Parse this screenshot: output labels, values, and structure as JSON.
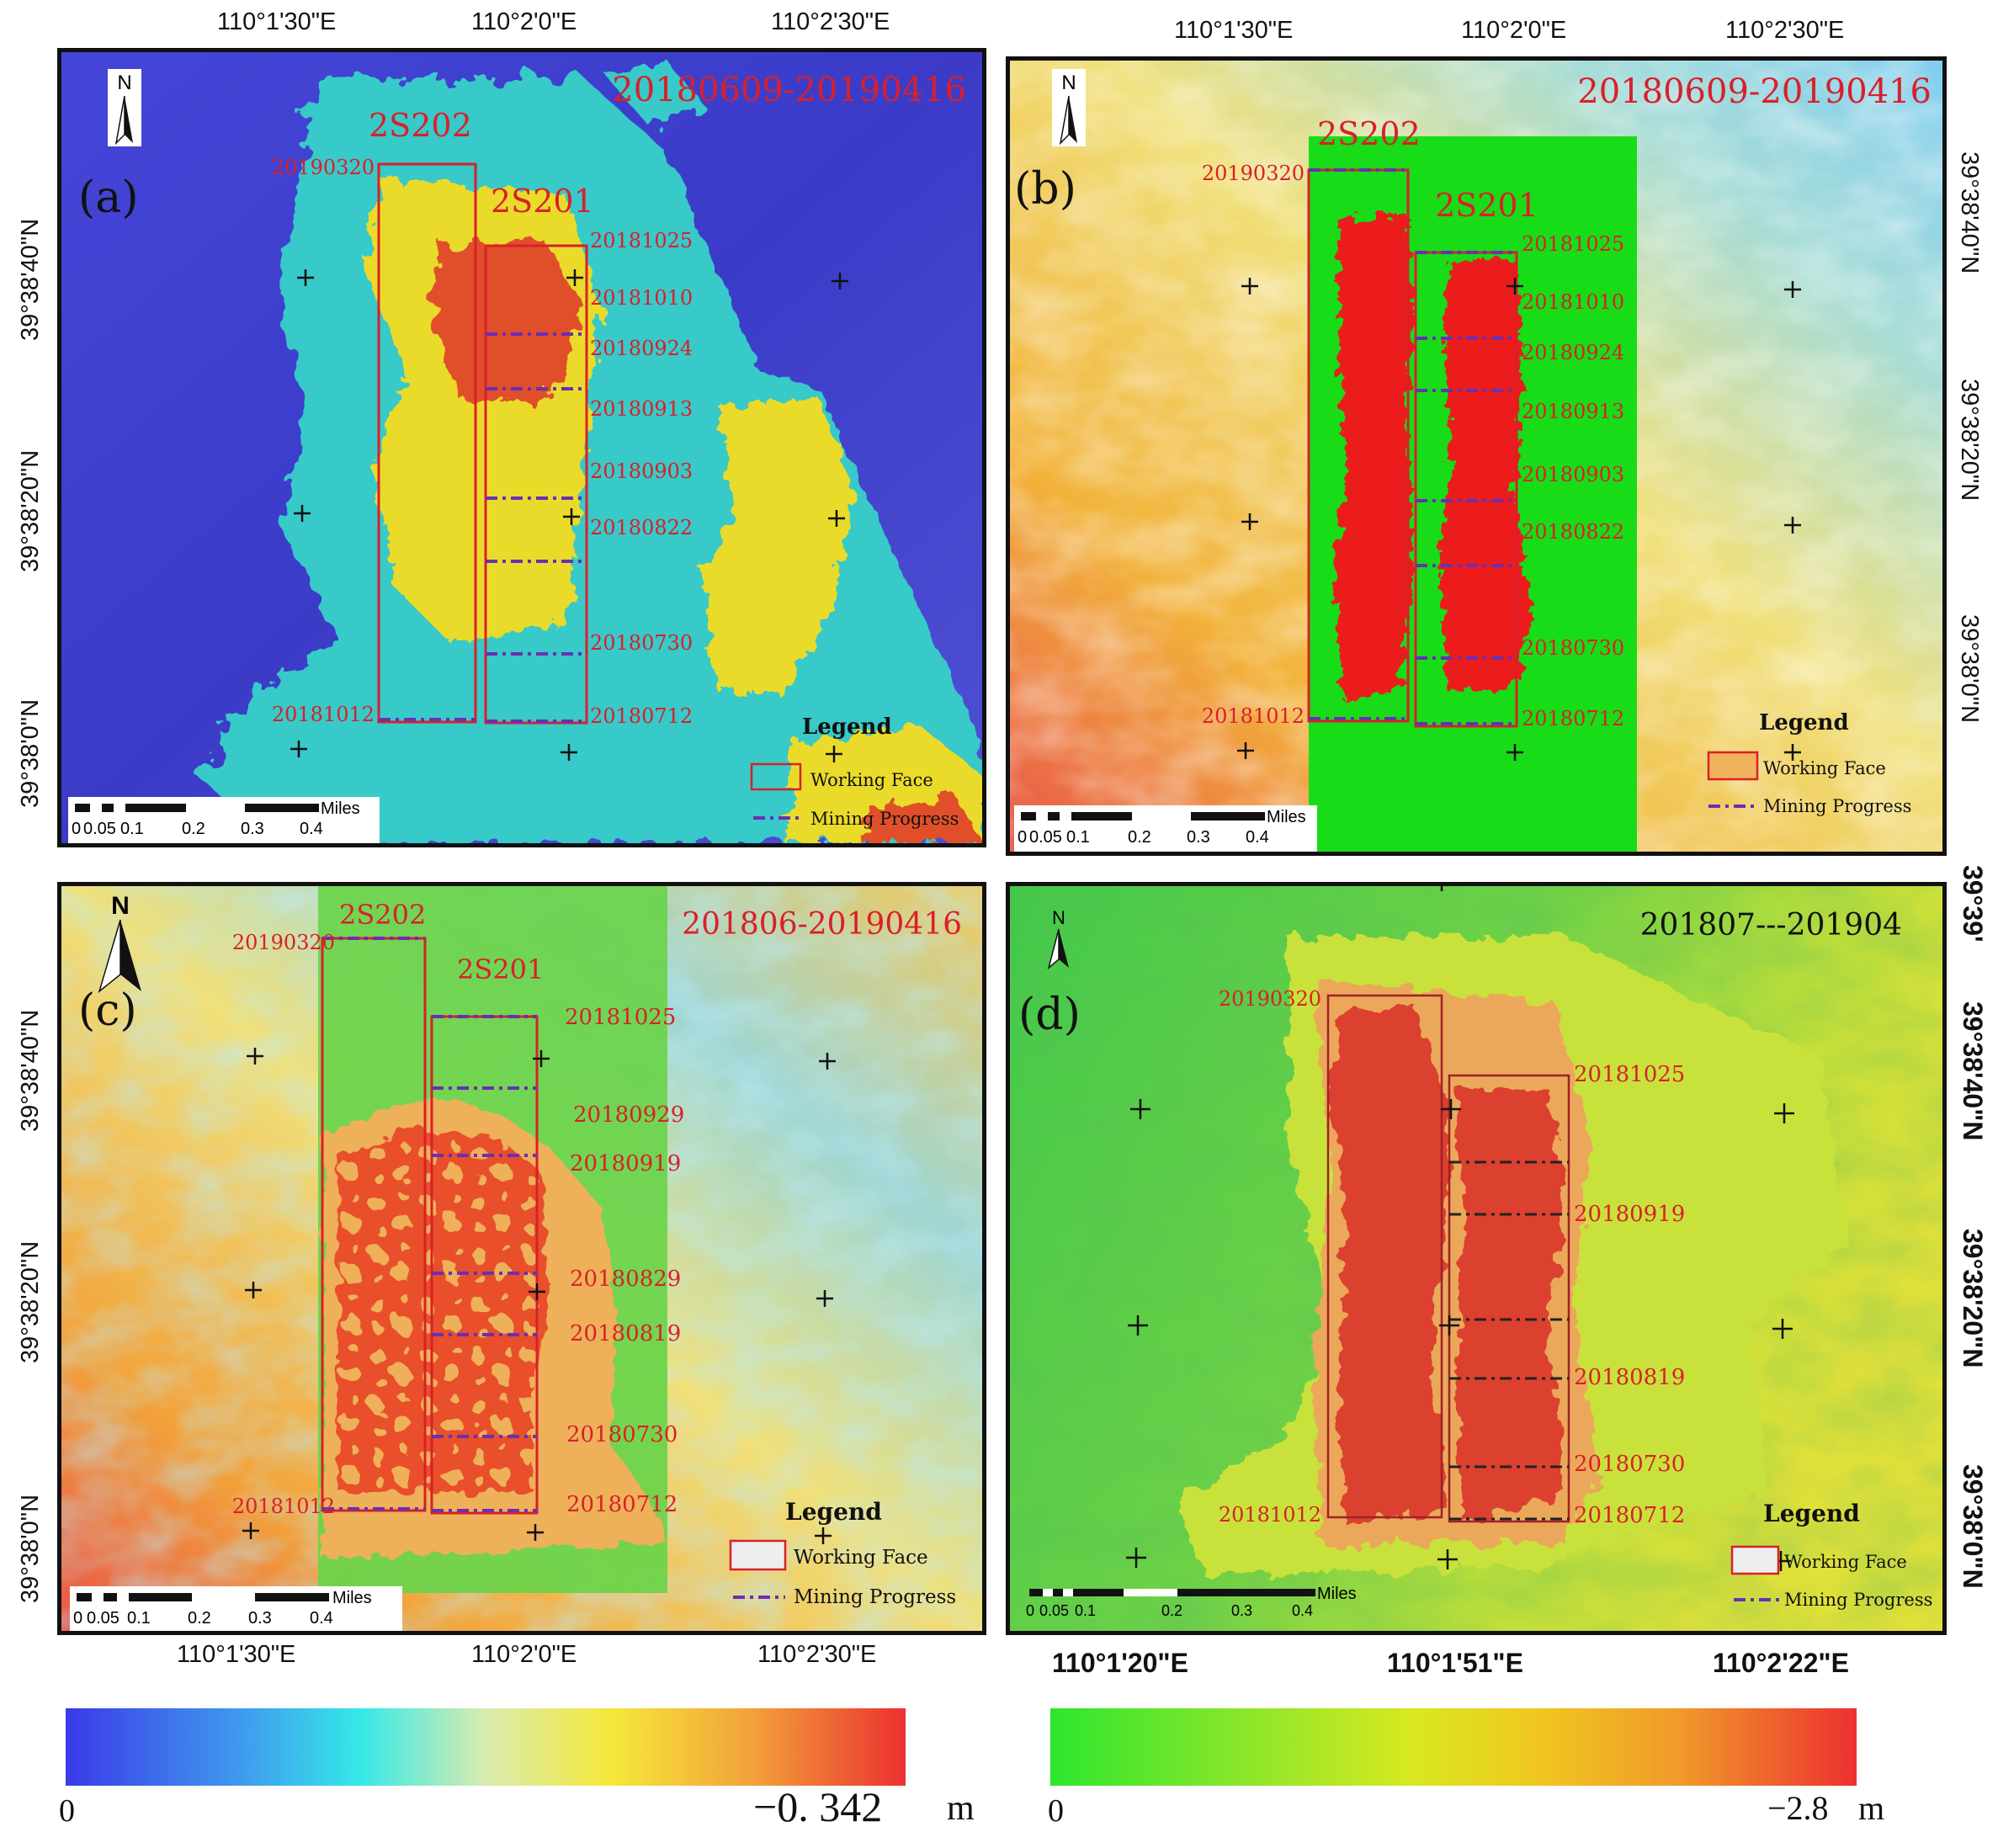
{
  "colors": {
    "red_text": "#d9202a",
    "purple_line": "#6a2fb4",
    "frame": "#111111"
  },
  "panels": [
    {
      "label": "(a)",
      "date_range": "20180609-20190416",
      "date_color": "#d9202a",
      "faces": {
        "left": "2S202",
        "right": "2S201"
      },
      "left_labels": {
        "top": "20190320",
        "bottom": "20181012"
      },
      "right_labels": [
        "20181025",
        "20181010",
        "20180924",
        "20180913",
        "20180903",
        "20180822",
        "20180730",
        "20180712"
      ],
      "legend": {
        "title": "Legend",
        "working_face": "Working Face",
        "mining_progress": "Mining Progress"
      },
      "scale": {
        "unit": "Miles",
        "ticks": [
          "0",
          "0.05",
          "0.1",
          "0.2",
          "0.3",
          "0.4"
        ]
      }
    },
    {
      "label": "(b)",
      "date_range": "20180609-20190416",
      "date_color": "#d9202a",
      "faces": {
        "left": "2S202",
        "right": "2S201"
      },
      "left_labels": {
        "top": "20190320",
        "bottom": "20181012"
      },
      "right_labels": [
        "20181025",
        "20181010",
        "20180924",
        "20180913",
        "20180903",
        "20180822",
        "20180730",
        "20180712"
      ],
      "legend": {
        "title": "Legend",
        "working_face": "Working Face",
        "mining_progress": "Mining Progress"
      },
      "scale": {
        "unit": "Miles",
        "ticks": [
          "0",
          "0.05",
          "0.1",
          "0.2",
          "0.3",
          "0.4"
        ]
      }
    },
    {
      "label": "(c)",
      "date_range": "201806-20190416",
      "date_color": "#d9202a",
      "faces": {
        "left": "2S202",
        "right": "2S201"
      },
      "left_labels": {
        "top": "20190320",
        "bottom": "20181012"
      },
      "right_labels": [
        "20181025",
        "20180929",
        "20180919",
        "20180829",
        "20180819",
        "20180730",
        "20180712"
      ],
      "legend": {
        "title": "Legend",
        "working_face": "Working Face",
        "mining_progress": "Mining Progress"
      },
      "scale": {
        "unit": "Miles",
        "ticks": [
          "0",
          "0.05",
          "0.1",
          "0.2",
          "0.3",
          "0.4"
        ]
      }
    },
    {
      "label": "(d)",
      "date_range": "201807---201904",
      "date_color": "#111111",
      "faces": {
        "left": "",
        "right": ""
      },
      "left_labels": {
        "top": "20190320",
        "bottom": "20181012"
      },
      "right_labels": [
        "20181025",
        "20180919",
        "20180819",
        "20180730",
        "20180712"
      ],
      "legend": {
        "title": "Legend",
        "working_face": "Working Face",
        "mining_progress": "Mining Progress"
      },
      "scale": {
        "unit": "Miles",
        "ticks": [
          "0",
          "0.05",
          "0.1",
          "0.2",
          "0.3",
          "0.4"
        ]
      }
    }
  ],
  "axes": {
    "top_lon": [
      "110°1'30\"E",
      "110°2'0\"E",
      "110°2'30\"E"
    ],
    "bottom_lon_c": [
      "110°1'30\"E",
      "110°2'0\"E",
      "110°2'30\"E"
    ],
    "bottom_lon_d": [
      "110°1'20\"E",
      "110°1'51\"E",
      "110°2'22\"E"
    ],
    "lat_left": [
      "39°38'40\"N",
      "39°38'20\"N",
      "39°38'0\"N"
    ],
    "lat_right": [
      "39°38'40\"N",
      "39°38'20\"N",
      "39°38'0\"N"
    ],
    "lat_right_d": [
      "39°39'",
      "39°38'40\"N",
      "39°38'20\"N",
      "39°38'0\"N"
    ],
    "north": "N"
  },
  "colorbars": {
    "left": {
      "min": "0",
      "max": "−0. 342",
      "unit": "m"
    },
    "right": {
      "min": "0",
      "max": "−2.8",
      "unit": "m"
    }
  }
}
